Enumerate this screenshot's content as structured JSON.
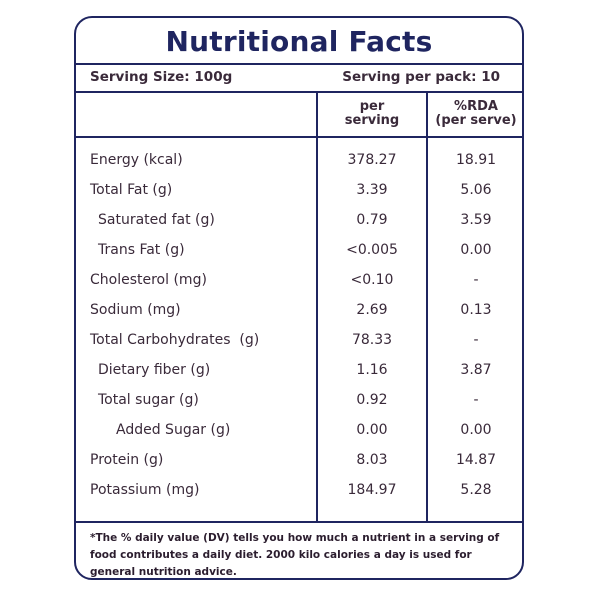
{
  "title": "Nutritional Facts",
  "serving_size": "Serving Size: 100g",
  "servings_per_pack": "Serving per pack: 10",
  "columns": {
    "per_serving_line1": "per",
    "per_serving_line2": "serving",
    "rda_line1": "%RDA",
    "rda_line2": "(per serve)"
  },
  "rows": [
    {
      "name": "Energy (kcal)",
      "per_serving": "378.27",
      "rda": "18.91"
    },
    {
      "name": "Total Fat (g)",
      "per_serving": "3.39",
      "rda": "5.06"
    },
    {
      "name": "Saturated fat (g)",
      "per_serving": "0.79",
      "rda": "3.59"
    },
    {
      "name": "Trans Fat (g)",
      "per_serving": "<0.005",
      "rda": "0.00"
    },
    {
      "name": "Cholesterol (mg)",
      "per_serving": "<0.10",
      "rda": "-"
    },
    {
      "name": "Sodium (mg)",
      "per_serving": "2.69",
      "rda": "0.13"
    },
    {
      "name": "Total Carbohydrates  (g)",
      "per_serving": "78.33",
      "rda": "-"
    },
    {
      "name": "Dietary fiber (g)",
      "per_serving": "1.16",
      "rda": "3.87"
    },
    {
      "name": "Total sugar (g)",
      "per_serving": "0.92",
      "rda": "-"
    },
    {
      "name": "Added Sugar (g)",
      "per_serving": "0.00",
      "rda": "0.00"
    },
    {
      "name": "Protein (g)",
      "per_serving": "8.03",
      "rda": "14.87"
    },
    {
      "name": "Potassium (mg)",
      "per_serving": "184.97",
      "rda": "5.28"
    }
  ],
  "footer": "*The % daily value (DV) tells you how much a nutrient in a serving of food contributes a daily diet. 2000 kilo calories a day is used for general nutrition advice.",
  "colors": {
    "border": "#1f2560",
    "text": "#3a2a3a"
  }
}
